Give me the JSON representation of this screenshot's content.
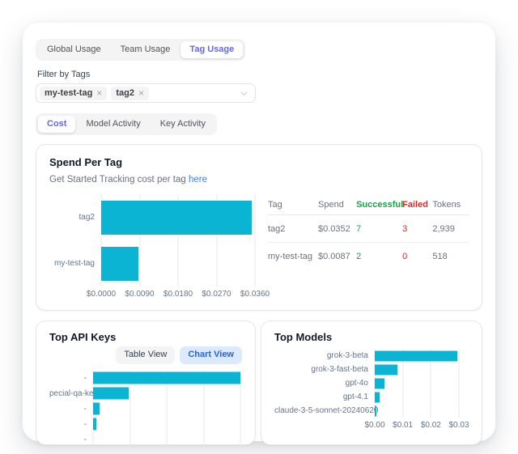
{
  "usage_tabs": {
    "items": [
      {
        "label": "Global Usage",
        "active": false
      },
      {
        "label": "Team Usage",
        "active": false
      },
      {
        "label": "Tag Usage",
        "active": true
      }
    ]
  },
  "filter": {
    "label": "Filter by Tags",
    "tags": [
      {
        "text": "my-test-tag",
        "remove_icon": "×"
      },
      {
        "text": "tag2",
        "remove_icon": "×"
      }
    ]
  },
  "view_tabs": {
    "items": [
      {
        "label": "Cost",
        "active": true
      },
      {
        "label": "Model Activity",
        "active": false
      },
      {
        "label": "Key Activity",
        "active": false
      }
    ]
  },
  "spend_card": {
    "title": "Spend Per Tag",
    "subtitle_text": "Get Started Tracking cost per tag",
    "subtitle_link": "here",
    "table": {
      "headers": [
        "Tag",
        "Spend",
        "Successful",
        "Failed",
        "Tokens"
      ],
      "rows": [
        {
          "tag": "tag2",
          "spend": "$0.0352",
          "successful": "7",
          "failed": "3",
          "tokens": "2,939"
        },
        {
          "tag": "my-test-tag",
          "spend": "$0.0087",
          "successful": "2",
          "failed": "0",
          "tokens": "518"
        }
      ]
    }
  },
  "top_api_keys_card": {
    "title": "Top API Keys",
    "toggle": [
      {
        "label": "Table View",
        "active": false
      },
      {
        "label": "Chart View",
        "active": true
      }
    ]
  },
  "top_models_card": {
    "title": "Top Models"
  },
  "colors": {
    "accent_cyan": "#0ab4d2",
    "active_tab_text": "#6366f1",
    "link_blue": "#3b82f6",
    "success_green": "#16a34a",
    "fail_red": "#dc2626",
    "chart_view_bg": "#dbeafe",
    "chart_view_text": "#2563eb"
  },
  "chart_data": [
    {
      "name": "Spend Per Tag",
      "type": "bar",
      "orientation": "horizontal",
      "categories": [
        "tag2",
        "my-test-tag"
      ],
      "values": [
        0.0352,
        0.0087
      ],
      "xlim": [
        0,
        0.036
      ],
      "tick_labels": [
        "$0.0000",
        "$0.0090",
        "$0.0180",
        "$0.0270",
        "$0.0360"
      ],
      "grid": true,
      "legend": "none",
      "bar_color": "#0ab4d2"
    },
    {
      "name": "Top API Keys",
      "type": "bar",
      "orientation": "horizontal",
      "categories": [
        "-",
        "pecial-qa-key",
        "-",
        "-",
        "-"
      ],
      "values": [
        1.0,
        0.24,
        0.045,
        0.022,
        0
      ],
      "xlim": [
        0,
        1
      ],
      "tick_labels": [],
      "grid": true,
      "legend": "none",
      "axis_note": "x-axis labels clipped by card edge; values are fractions of the longest bar",
      "bar_color": "#0ab4d2"
    },
    {
      "name": "Top Models",
      "type": "bar",
      "orientation": "horizontal",
      "categories": [
        "grok-3-beta",
        "grok-3-fast-beta",
        "gpt-4o",
        "gpt-4.1",
        "claude-3-5-sonnet-20240620"
      ],
      "values": [
        0.0295,
        0.0082,
        0.0036,
        0.0018,
        0.0007
      ],
      "xlim": [
        0,
        0.03
      ],
      "tick_labels": [
        "$0.00",
        "$0.01",
        "$0.02",
        "$0.03"
      ],
      "grid": true,
      "legend": "none",
      "bar_color": "#0ab4d2"
    }
  ]
}
